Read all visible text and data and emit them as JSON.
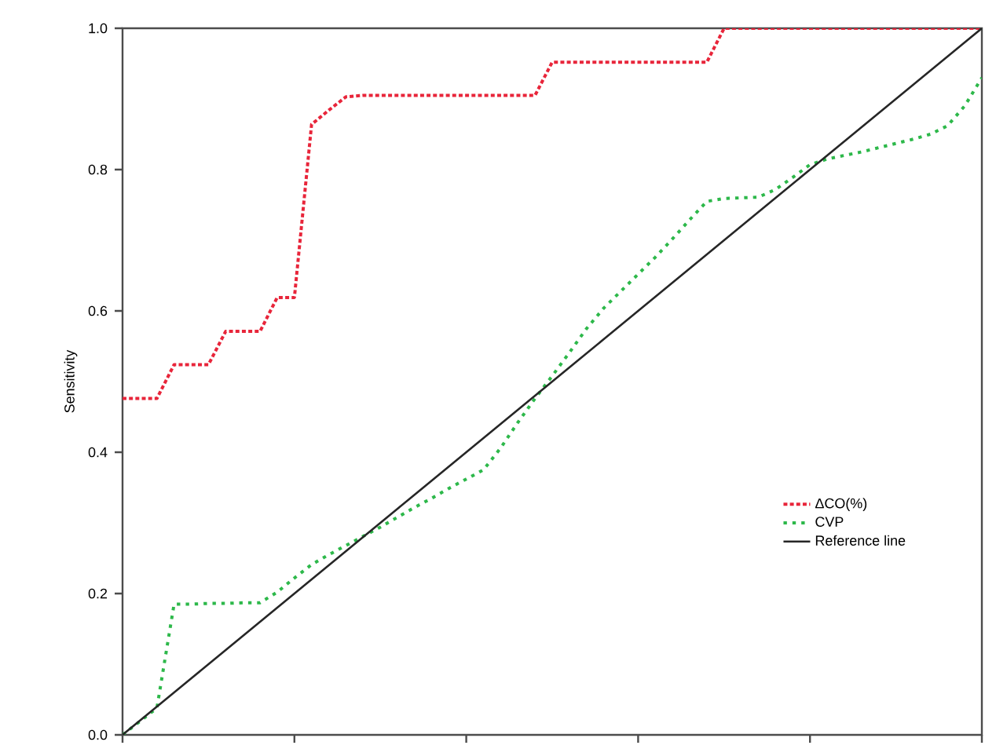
{
  "chart_data": {
    "type": "line",
    "ylabel": "Sensitivity",
    "ylim": [
      0,
      1
    ],
    "categories": [
      null,
      null,
      null,
      null,
      null,
      null,
      null,
      null,
      null,
      null,
      null,
      null,
      null,
      null,
      null,
      null,
      null,
      null,
      null,
      null,
      null,
      null,
      null,
      null,
      null,
      null,
      null,
      null,
      null,
      null,
      null,
      null,
      null,
      null,
      null,
      null,
      null,
      null,
      null,
      null,
      null,
      null,
      null,
      null,
      null,
      null,
      null,
      null,
      null,
      null,
      null
    ],
    "yticks": [
      {
        "value": 0,
        "label": "0.0"
      },
      {
        "value": 0.2,
        "label": "0.2"
      },
      {
        "value": 0.4,
        "label": "0.4"
      },
      {
        "value": 0.6,
        "label": "0.6"
      },
      {
        "value": 0.8,
        "label": "0.8"
      },
      {
        "value": 1,
        "label": "1.0"
      }
    ],
    "legend": "right",
    "series": [
      {
        "name": "ΔCO(%)",
        "color": "#e8253a",
        "line_style": "dashed",
        "values": [
          0.476,
          0.476,
          0.476,
          0.524,
          0.524,
          0.524,
          0.571,
          0.571,
          0.571,
          0.619,
          0.619,
          0.864,
          0.884,
          0.903,
          0.905,
          0.905,
          0.905,
          0.905,
          0.905,
          0.905,
          0.905,
          0.905,
          0.905,
          0.905,
          0.905,
          0.952,
          0.952,
          0.952,
          0.952,
          0.952,
          0.952,
          0.952,
          0.952,
          0.952,
          0.952,
          1,
          1,
          1,
          1,
          1,
          1,
          1,
          1,
          1,
          1,
          1,
          1,
          1,
          1,
          1,
          1
        ]
      },
      {
        "name": "CVP",
        "color": "#2db84a",
        "line_style": "dotted",
        "values": [
          0,
          0.019,
          0.038,
          0.185,
          0.185,
          0.186,
          0.186,
          0.187,
          0.187,
          0.202,
          0.222,
          0.241,
          0.255,
          0.268,
          0.281,
          0.294,
          0.308,
          0.322,
          0.335,
          0.349,
          0.362,
          0.375,
          0.406,
          0.442,
          0.476,
          0.508,
          0.541,
          0.575,
          0.604,
          0.628,
          0.652,
          0.676,
          0.702,
          0.729,
          0.755,
          0.759,
          0.76,
          0.761,
          0.772,
          0.789,
          0.807,
          0.815,
          0.82,
          0.825,
          0.831,
          0.837,
          0.843,
          0.85,
          0.862,
          0.89,
          0.93
        ]
      },
      {
        "name": "Reference line",
        "color": "#262626",
        "line_style": "solid",
        "values": [
          0,
          0.02,
          0.04,
          0.06,
          0.08,
          0.1,
          0.12,
          0.14,
          0.16,
          0.18,
          0.2,
          0.22,
          0.24,
          0.26,
          0.28,
          0.3,
          0.32,
          0.34,
          0.36,
          0.38,
          0.4,
          0.42,
          0.44,
          0.46,
          0.48,
          0.5,
          0.52,
          0.54,
          0.56,
          0.58,
          0.6,
          0.62,
          0.64,
          0.66,
          0.68,
          0.7,
          0.72,
          0.74,
          0.76,
          0.78,
          0.8,
          0.82,
          0.84,
          0.86,
          0.88,
          0.9,
          0.92,
          0.94,
          0.96,
          0.98,
          1
        ]
      }
    ]
  }
}
